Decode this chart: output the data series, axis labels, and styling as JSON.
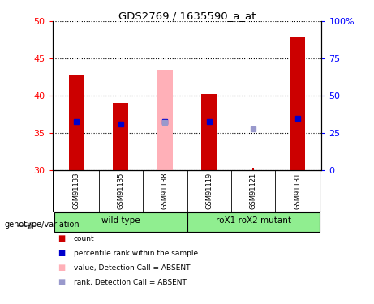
{
  "title": "GDS2769 / 1635590_a_at",
  "samples": [
    "GSM91133",
    "GSM91135",
    "GSM91138",
    "GSM91119",
    "GSM91121",
    "GSM91131"
  ],
  "bar_bottoms": 30,
  "bar_tops_red": [
    42.8,
    39.0,
    null,
    40.2,
    null,
    47.8
  ],
  "bar_tops_pink": [
    null,
    null,
    43.5,
    null,
    null,
    null
  ],
  "percentile_rank_y": [
    36.5,
    36.2,
    36.5,
    36.5,
    null,
    37.0
  ],
  "percentile_rank_absent_y": [
    null,
    null,
    36.4,
    null,
    35.5,
    null
  ],
  "rank_absent_red_y": [
    null,
    null,
    null,
    null,
    30.35,
    null
  ],
  "ylim": [
    30,
    50
  ],
  "yticks_left": [
    30,
    35,
    40,
    45,
    50
  ],
  "yticks_right_labels": [
    "0",
    "25",
    "50",
    "75",
    "100%"
  ],
  "bar_width": 0.35,
  "bar_color_red": "#cc0000",
  "bar_color_pink": "#ffb0b8",
  "marker_color_blue": "#0000cc",
  "marker_color_lightblue": "#9999cc",
  "background_color": "#ffffff",
  "group_spans": [
    [
      0,
      2,
      "wild type"
    ],
    [
      3,
      5,
      "roX1 roX2 mutant"
    ]
  ],
  "group_color": "#90ee90",
  "legend_colors": [
    "#cc0000",
    "#0000cc",
    "#ffb0b8",
    "#9999cc"
  ],
  "legend_labels": [
    "count",
    "percentile rank within the sample",
    "value, Detection Call = ABSENT",
    "rank, Detection Call = ABSENT"
  ],
  "genotype_label": "genotype/variation"
}
